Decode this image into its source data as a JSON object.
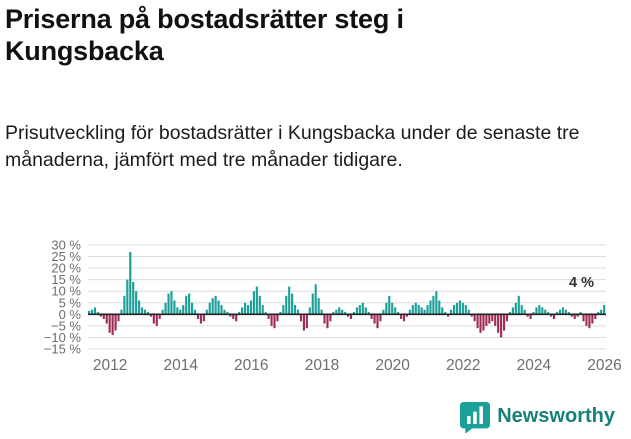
{
  "header": {
    "title": "Priserna på bostadsrätter steg i Kungsbacka",
    "subtitle": "Prisutveckling för bostadsrätter i Kungsbacka under de senaste tre månaderna, jämfört med tre månader tidigare."
  },
  "chart_data": {
    "type": "bar",
    "title": "",
    "xlabel": "",
    "ylabel": "",
    "unit": "%",
    "freq": "monthly",
    "start": "2011-06",
    "ylim": [
      -15,
      30
    ],
    "grid": true,
    "y_ticks": [
      30,
      25,
      20,
      15,
      10,
      5,
      0,
      -5,
      -10,
      -15
    ],
    "y_tick_labels": [
      "30 %",
      "25 %",
      "20 %",
      "15 %",
      "10 %",
      "5 %",
      "0 %",
      "−5 %",
      "−10 %",
      "−15 %"
    ],
    "x_tick_labels": [
      "2012",
      "2014",
      "2016",
      "2018",
      "2020",
      "2022",
      "2024",
      "2026"
    ],
    "annotation": "4 %",
    "colors": {
      "positive": "#1a9f99",
      "negative": "#a02b55",
      "grid": "#dcdcdc",
      "zero_line": "#222222",
      "axis_text": "#6e6e6e",
      "annotation_text": "#333333"
    },
    "values": [
      1.5,
      2,
      3,
      1,
      -1,
      -2,
      -4,
      -8,
      -9,
      -7,
      -3,
      2,
      8,
      15,
      27,
      14,
      10,
      6,
      3,
      2,
      1,
      -1,
      -4,
      -5,
      -2,
      2,
      5,
      9,
      10,
      6,
      3,
      2,
      4,
      8,
      9,
      5,
      2,
      -2,
      -4,
      -3,
      2,
      5,
      7,
      8,
      6,
      4,
      2,
      1,
      -1,
      -2,
      -3,
      1,
      3,
      5,
      4,
      6,
      10,
      12,
      8,
      4,
      1,
      -2,
      -5,
      -6,
      -3,
      1,
      4,
      8,
      12,
      9,
      4,
      2,
      -3,
      -7,
      -6,
      3,
      9,
      13,
      7,
      2,
      -4,
      -6,
      -3,
      1,
      2,
      3,
      2,
      1,
      -1,
      -2,
      1,
      3,
      4,
      5,
      3,
      1,
      -2,
      -4,
      -6,
      -3,
      2,
      5,
      8,
      5,
      3,
      1,
      -2,
      -3,
      -1,
      2,
      4,
      5,
      4,
      3,
      2,
      4,
      6,
      8,
      10,
      6,
      3,
      1,
      -1,
      2,
      4,
      5,
      6,
      5,
      4,
      2,
      -1,
      -3,
      -6,
      -8,
      -7,
      -5,
      -4,
      -3,
      -5,
      -8,
      -10,
      -7,
      -3,
      1,
      3,
      5,
      8,
      4,
      2,
      -1,
      -2,
      1,
      3,
      4,
      3,
      2,
      1,
      -1,
      -2,
      1,
      2,
      3,
      2,
      1,
      -1,
      -2,
      -1,
      1,
      -3,
      -5,
      -6,
      -4,
      -2,
      1,
      2,
      4
    ]
  },
  "footer": {
    "brand": "Newsworthy"
  }
}
